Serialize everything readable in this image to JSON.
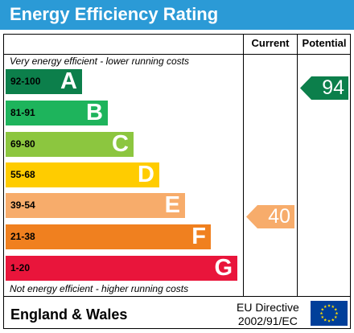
{
  "title": "Energy Efficiency Rating",
  "columns": {
    "current": "Current",
    "potential": "Potential"
  },
  "hints": {
    "top": "Very energy efficient - lower running costs",
    "bottom": "Not energy efficient - higher running costs"
  },
  "bands": [
    {
      "range": "92-100",
      "letter": "A",
      "color": "#0c7f4b",
      "range_color": "#000000"
    },
    {
      "range": "81-91",
      "letter": "B",
      "color": "#1eb45c",
      "range_color": "#000000"
    },
    {
      "range": "69-80",
      "letter": "C",
      "color": "#8cc63f",
      "range_color": "#000000"
    },
    {
      "range": "55-68",
      "letter": "D",
      "color": "#ffcc00",
      "range_color": "#000000"
    },
    {
      "range": "39-54",
      "letter": "E",
      "color": "#f7ac6b",
      "range_color": "#000000"
    },
    {
      "range": "21-38",
      "letter": "F",
      "color": "#f0801f",
      "range_color": "#000000"
    },
    {
      "range": "1-20",
      "letter": "G",
      "color": "#e9153b",
      "range_color": "#000000"
    }
  ],
  "current_rating": {
    "value": "40",
    "color": "#f7ac6b"
  },
  "potential_rating": {
    "value": "94",
    "color": "#0c7f4b"
  },
  "footer": {
    "region": "England & Wales",
    "directive_line1": "EU Directive",
    "directive_line2": "2002/91/EC"
  },
  "colors": {
    "title_bar": "#2b9ad6",
    "eu_flag_blue": "#003f9a",
    "eu_flag_stars": "#ffdd00"
  }
}
